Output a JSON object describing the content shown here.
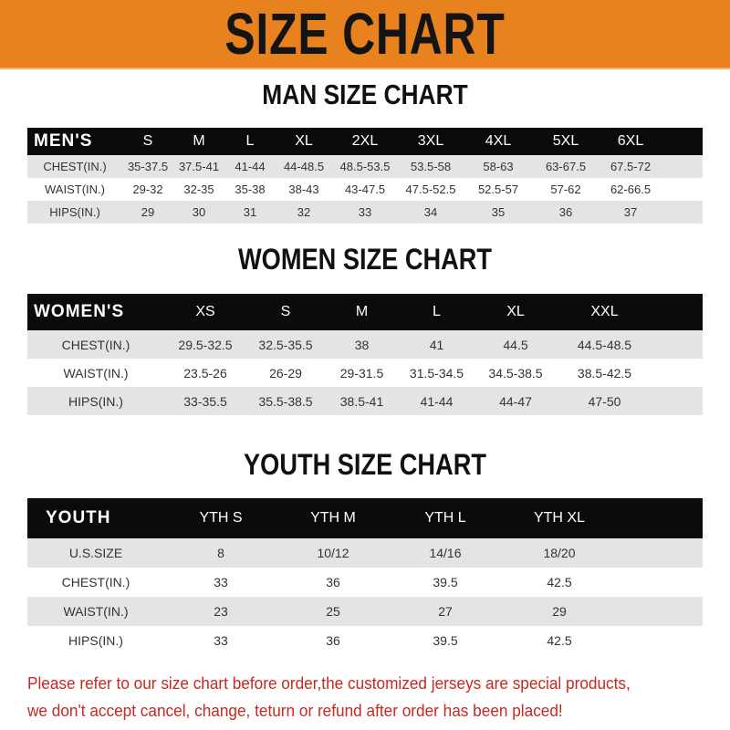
{
  "banner": {
    "title": "SIZE CHART",
    "color": "#e8821f"
  },
  "men": {
    "title": "MAN SIZE CHART",
    "header": [
      "MEN'S",
      "S",
      "M",
      "L",
      "XL",
      "2XL",
      "3XL",
      "4XL",
      "5XL",
      "6XL"
    ],
    "rows": [
      [
        "CHEST(IN.)",
        "35-37.5",
        "37.5-41",
        "41-44",
        "44-48.5",
        "48.5-53.5",
        "53.5-58",
        "58-63",
        "63-67.5",
        "67.5-72"
      ],
      [
        "WAIST(IN.)",
        "29-32",
        "32-35",
        "35-38",
        "38-43",
        "43-47.5",
        "47.5-52.5",
        "52.5-57",
        "57-62",
        "62-66.5"
      ],
      [
        "HIPS(IN.)",
        "29",
        "30",
        "31",
        "32",
        "33",
        "34",
        "35",
        "36",
        "37"
      ]
    ]
  },
  "women": {
    "title": "WOMEN SIZE CHART",
    "header": [
      "WOMEN'S",
      "XS",
      "S",
      "M",
      "L",
      "XL",
      "XXL"
    ],
    "rows": [
      [
        "CHEST(IN.)",
        "29.5-32.5",
        "32.5-35.5",
        "38",
        "41",
        "44.5",
        "44.5-48.5"
      ],
      [
        "WAIST(IN.)",
        "23.5-26",
        "26-29",
        "29-31.5",
        "31.5-34.5",
        "34.5-38.5",
        "38.5-42.5"
      ],
      [
        "HIPS(IN.)",
        "33-35.5",
        "35.5-38.5",
        "38.5-41",
        "41-44",
        "44-47",
        "47-50"
      ]
    ]
  },
  "youth": {
    "title": "YOUTH SIZE CHART",
    "header": [
      "YOUTH",
      "YTH S",
      "YTH M",
      "YTH L",
      "YTH XL"
    ],
    "rows": [
      [
        "U.S.SIZE",
        "8",
        "10/12",
        "14/16",
        "18/20"
      ],
      [
        "CHEST(IN.)",
        "33",
        "36",
        "39.5",
        "42.5"
      ],
      [
        "WAIST(IN.)",
        "23",
        "25",
        "27",
        "29"
      ],
      [
        "HIPS(IN.)",
        "33",
        "36",
        "39.5",
        "42.5"
      ]
    ]
  },
  "note": {
    "line1": "Please refer to our size chart before order,the customized jerseys are special products,",
    "line2": "we don't accept cancel, change, teturn or refund after order has been placed!",
    "color": "#c8281e"
  }
}
